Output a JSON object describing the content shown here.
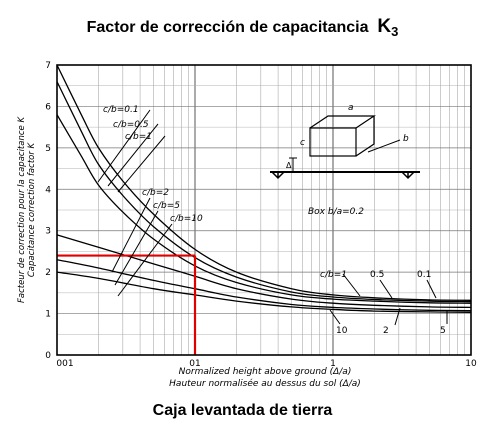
{
  "header": {
    "title_text": "Factor de corrección de capacitancia",
    "title_symbol": "K",
    "title_subscript": "3"
  },
  "caption": "Caja levantada de tierra",
  "chart_data": {
    "type": "line",
    "xscale": "log",
    "xlim": [
      0.01,
      10
    ],
    "ylim": [
      0,
      7
    ],
    "grid": true,
    "x_tick_labels": [
      "001",
      "01",
      "1",
      "10"
    ],
    "y_tick_labels": [
      "0",
      "1",
      "2",
      "3",
      "4",
      "5",
      "6",
      "7"
    ],
    "ylabel_fr": "Facteur de correction pour la capacitance K",
    "ylabel_en": "Capacitance correction factor K",
    "xlabel_en": "Normalized height above ground (Δ/a)",
    "xlabel_fr": "Hauteur normalisée au dessus du sol (Δ/a)",
    "inset_labels": {
      "a": "a",
      "b": "b",
      "c": "c",
      "delta": "Δ",
      "box": "Box  b/a=0.2"
    },
    "series_labels": {
      "group_top": [
        "c/b=0.1",
        "c/b=0.5",
        "c/b=1"
      ],
      "group_bottom": [
        "c/b=2",
        "c/b=5",
        "c/b=10"
      ],
      "right_top": [
        "c/b=1",
        "0.5",
        "0.1"
      ],
      "right_bottom": [
        "10",
        "2",
        "5"
      ]
    },
    "series": [
      {
        "name": "c/b=0.1",
        "points": [
          [
            0.01,
            7.0
          ],
          [
            0.015,
            5.8
          ],
          [
            0.02,
            5.0
          ],
          [
            0.03,
            4.2
          ],
          [
            0.05,
            3.4
          ],
          [
            0.1,
            2.55
          ],
          [
            0.2,
            2.0
          ],
          [
            0.5,
            1.6
          ],
          [
            1,
            1.45
          ],
          [
            2,
            1.38
          ],
          [
            5,
            1.33
          ],
          [
            10,
            1.32
          ]
        ]
      },
      {
        "name": "c/b=0.5",
        "points": [
          [
            0.01,
            6.6
          ],
          [
            0.015,
            5.4
          ],
          [
            0.02,
            4.6
          ],
          [
            0.03,
            3.85
          ],
          [
            0.05,
            3.1
          ],
          [
            0.1,
            2.35
          ],
          [
            0.2,
            1.88
          ],
          [
            0.5,
            1.52
          ],
          [
            1,
            1.4
          ],
          [
            2,
            1.34
          ],
          [
            5,
            1.3
          ],
          [
            10,
            1.29
          ]
        ]
      },
      {
        "name": "c/b=1",
        "points": [
          [
            0.01,
            5.8
          ],
          [
            0.015,
            4.8
          ],
          [
            0.02,
            4.1
          ],
          [
            0.03,
            3.45
          ],
          [
            0.05,
            2.8
          ],
          [
            0.1,
            2.15
          ],
          [
            0.2,
            1.75
          ],
          [
            0.5,
            1.45
          ],
          [
            1,
            1.35
          ],
          [
            2,
            1.3
          ],
          [
            5,
            1.26
          ],
          [
            10,
            1.25
          ]
        ]
      },
      {
        "name": "c/b=2",
        "points": [
          [
            0.01,
            2.9
          ],
          [
            0.02,
            2.6
          ],
          [
            0.05,
            2.2
          ],
          [
            0.1,
            1.9
          ],
          [
            0.2,
            1.6
          ],
          [
            0.5,
            1.35
          ],
          [
            1,
            1.25
          ],
          [
            2,
            1.2
          ],
          [
            5,
            1.16
          ],
          [
            10,
            1.15
          ]
        ]
      },
      {
        "name": "c/b=5",
        "points": [
          [
            0.01,
            2.3
          ],
          [
            0.02,
            2.1
          ],
          [
            0.05,
            1.8
          ],
          [
            0.1,
            1.6
          ],
          [
            0.2,
            1.4
          ],
          [
            0.5,
            1.22
          ],
          [
            1,
            1.15
          ],
          [
            2,
            1.11
          ],
          [
            5,
            1.08
          ],
          [
            10,
            1.07
          ]
        ]
      },
      {
        "name": "c/b=10",
        "points": [
          [
            0.01,
            2.0
          ],
          [
            0.02,
            1.85
          ],
          [
            0.05,
            1.6
          ],
          [
            0.1,
            1.45
          ],
          [
            0.2,
            1.3
          ],
          [
            0.5,
            1.16
          ],
          [
            1,
            1.1
          ],
          [
            2,
            1.06
          ],
          [
            5,
            1.04
          ],
          [
            10,
            1.03
          ]
        ]
      }
    ],
    "reference_point": {
      "x": 0.1,
      "y": 2.4,
      "color": "#e00000"
    }
  }
}
